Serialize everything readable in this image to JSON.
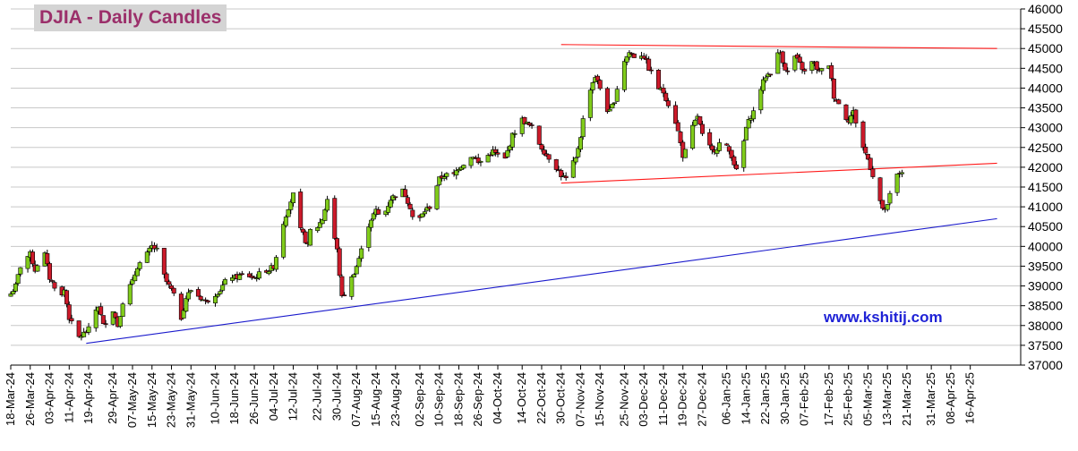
{
  "chart_data": {
    "type": "candlestick",
    "title": "DJIA - Daily Candles",
    "watermark_url": "www.kshitij.com",
    "ylim": [
      37000,
      46000
    ],
    "y_ticks": [
      37000,
      37500,
      38000,
      38500,
      39000,
      39500,
      40000,
      40500,
      41000,
      41500,
      42000,
      42500,
      43000,
      43500,
      44000,
      44500,
      45000,
      45500,
      46000
    ],
    "x_range_days": [
      0,
      405
    ],
    "x_ticks": [
      {
        "label": "18-Mar-24",
        "d": 0
      },
      {
        "label": "26-Mar-24",
        "d": 8
      },
      {
        "label": "03-Apr-24",
        "d": 16
      },
      {
        "label": "11-Apr-24",
        "d": 24
      },
      {
        "label": "19-Apr-24",
        "d": 32
      },
      {
        "label": "29-Apr-24",
        "d": 42
      },
      {
        "label": "07-May-24",
        "d": 50
      },
      {
        "label": "15-May-24",
        "d": 58
      },
      {
        "label": "23-May-24",
        "d": 66
      },
      {
        "label": "31-May-24",
        "d": 74
      },
      {
        "label": "10-Jun-24",
        "d": 84
      },
      {
        "label": "18-Jun-24",
        "d": 92
      },
      {
        "label": "26-Jun-24",
        "d": 100
      },
      {
        "label": "04-Jul-24",
        "d": 108
      },
      {
        "label": "12-Jul-24",
        "d": 116
      },
      {
        "label": "22-Jul-24",
        "d": 126
      },
      {
        "label": "30-Jul-24",
        "d": 134
      },
      {
        "label": "07-Aug-24",
        "d": 142
      },
      {
        "label": "15-Aug-24",
        "d": 150
      },
      {
        "label": "23-Aug-24",
        "d": 158
      },
      {
        "label": "02-Sep-24",
        "d": 168
      },
      {
        "label": "10-Sep-24",
        "d": 176
      },
      {
        "label": "18-Sep-24",
        "d": 184
      },
      {
        "label": "26-Sep-24",
        "d": 192
      },
      {
        "label": "04-Oct-24",
        "d": 200
      },
      {
        "label": "14-Oct-24",
        "d": 210
      },
      {
        "label": "22-Oct-24",
        "d": 218
      },
      {
        "label": "30-Oct-24",
        "d": 226
      },
      {
        "label": "07-Nov-24",
        "d": 234
      },
      {
        "label": "15-Nov-24",
        "d": 242
      },
      {
        "label": "25-Nov-24",
        "d": 252
      },
      {
        "label": "03-Dec-24",
        "d": 260
      },
      {
        "label": "11-Dec-24",
        "d": 268
      },
      {
        "label": "19-Dec-24",
        "d": 276
      },
      {
        "label": "27-Dec-24",
        "d": 284
      },
      {
        "label": "06-Jan-25",
        "d": 294
      },
      {
        "label": "14-Jan-25",
        "d": 302
      },
      {
        "label": "22-Jan-25",
        "d": 310
      },
      {
        "label": "30-Jan-25",
        "d": 318
      },
      {
        "label": "07-Feb-25",
        "d": 326
      },
      {
        "label": "17-Feb-25",
        "d": 336
      },
      {
        "label": "25-Feb-25",
        "d": 344
      },
      {
        "label": "05-Mar-25",
        "d": 352
      },
      {
        "label": "13-Mar-25",
        "d": 360
      },
      {
        "label": "21-Mar-25",
        "d": 368
      },
      {
        "label": "31-Mar-25",
        "d": 378
      },
      {
        "label": "08-Apr-25",
        "d": 386
      },
      {
        "label": "16-Apr-25",
        "d": 394
      }
    ],
    "anchors": [
      [
        0,
        38800
      ],
      [
        2,
        39000
      ],
      [
        4,
        39500
      ],
      [
        6,
        39700
      ],
      [
        8,
        39800
      ],
      [
        10,
        39400
      ],
      [
        12,
        39700
      ],
      [
        14,
        39800
      ],
      [
        16,
        39200
      ],
      [
        18,
        39000
      ],
      [
        20,
        38600
      ],
      [
        22,
        38900
      ],
      [
        24,
        38200
      ],
      [
        26,
        37900
      ],
      [
        28,
        37700
      ],
      [
        30,
        37800
      ],
      [
        32,
        37900
      ],
      [
        34,
        38300
      ],
      [
        36,
        38500
      ],
      [
        38,
        38000
      ],
      [
        40,
        38200
      ],
      [
        42,
        38400
      ],
      [
        44,
        38000
      ],
      [
        46,
        38600
      ],
      [
        48,
        38900
      ],
      [
        50,
        39100
      ],
      [
        52,
        39500
      ],
      [
        56,
        39800
      ],
      [
        58,
        40000
      ],
      [
        60,
        39900
      ],
      [
        62,
        39400
      ],
      [
        64,
        39100
      ],
      [
        66,
        38900
      ],
      [
        68,
        38600
      ],
      [
        70,
        38200
      ],
      [
        72,
        38700
      ],
      [
        74,
        38900
      ],
      [
        76,
        38800
      ],
      [
        78,
        38700
      ],
      [
        80,
        38600
      ],
      [
        84,
        38800
      ],
      [
        86,
        38900
      ],
      [
        88,
        39100
      ],
      [
        90,
        39300
      ],
      [
        92,
        39200
      ],
      [
        96,
        39300
      ],
      [
        100,
        39200
      ],
      [
        104,
        39400
      ],
      [
        106,
        39400
      ],
      [
        108,
        39500
      ],
      [
        110,
        40000
      ],
      [
        112,
        40600
      ],
      [
        114,
        41000
      ],
      [
        116,
        41300
      ],
      [
        118,
        40500
      ],
      [
        120,
        40300
      ],
      [
        122,
        40000
      ],
      [
        124,
        40800
      ],
      [
        126,
        40500
      ],
      [
        128,
        40700
      ],
      [
        130,
        41200
      ],
      [
        132,
        40500
      ],
      [
        134,
        39900
      ],
      [
        136,
        38700
      ],
      [
        138,
        38900
      ],
      [
        140,
        39200
      ],
      [
        142,
        39500
      ],
      [
        144,
        39900
      ],
      [
        146,
        40400
      ],
      [
        148,
        40700
      ],
      [
        150,
        40900
      ],
      [
        152,
        40700
      ],
      [
        154,
        40900
      ],
      [
        156,
        41200
      ],
      [
        158,
        41300
      ],
      [
        160,
        41500
      ],
      [
        162,
        41300
      ],
      [
        164,
        41000
      ],
      [
        166,
        40500
      ],
      [
        168,
        40700
      ],
      [
        170,
        40900
      ],
      [
        172,
        41000
      ],
      [
        174,
        41400
      ],
      [
        176,
        41700
      ],
      [
        178,
        41800
      ],
      [
        180,
        41800
      ],
      [
        182,
        41800
      ],
      [
        184,
        42000
      ],
      [
        186,
        42100
      ],
      [
        188,
        42200
      ],
      [
        190,
        42300
      ],
      [
        192,
        42100
      ],
      [
        194,
        42200
      ],
      [
        196,
        42300
      ],
      [
        198,
        42400
      ],
      [
        200,
        42300
      ],
      [
        202,
        42000
      ],
      [
        204,
        42400
      ],
      [
        206,
        42800
      ],
      [
        208,
        43000
      ],
      [
        210,
        43200
      ],
      [
        212,
        43100
      ],
      [
        214,
        43000
      ],
      [
        216,
        42700
      ],
      [
        218,
        42500
      ],
      [
        220,
        42300
      ],
      [
        222,
        42200
      ],
      [
        224,
        42000
      ],
      [
        226,
        41800
      ],
      [
        228,
        41700
      ],
      [
        230,
        42000
      ],
      [
        232,
        42200
      ],
      [
        234,
        42800
      ],
      [
        236,
        43600
      ],
      [
        238,
        44000
      ],
      [
        240,
        44300
      ],
      [
        242,
        44000
      ],
      [
        244,
        43500
      ],
      [
        246,
        43400
      ],
      [
        248,
        43700
      ],
      [
        250,
        44300
      ],
      [
        252,
        44700
      ],
      [
        254,
        44900
      ],
      [
        256,
        44800
      ],
      [
        258,
        44900
      ],
      [
        260,
        44800
      ],
      [
        262,
        44500
      ],
      [
        264,
        44300
      ],
      [
        266,
        44000
      ],
      [
        268,
        43900
      ],
      [
        270,
        43600
      ],
      [
        272,
        43400
      ],
      [
        274,
        42900
      ],
      [
        276,
        42300
      ],
      [
        278,
        42500
      ],
      [
        280,
        43000
      ],
      [
        282,
        43300
      ],
      [
        284,
        42800
      ],
      [
        286,
        42600
      ],
      [
        288,
        42400
      ],
      [
        290,
        42500
      ],
      [
        292,
        42700
      ],
      [
        294,
        42500
      ],
      [
        296,
        42300
      ],
      [
        298,
        41900
      ],
      [
        300,
        42300
      ],
      [
        302,
        43000
      ],
      [
        304,
        43300
      ],
      [
        306,
        43500
      ],
      [
        308,
        44000
      ],
      [
        310,
        44300
      ],
      [
        312,
        44400
      ],
      [
        314,
        44800
      ],
      [
        316,
        44900
      ],
      [
        318,
        44500
      ],
      [
        320,
        44300
      ],
      [
        322,
        44800
      ],
      [
        324,
        44600
      ],
      [
        326,
        44400
      ],
      [
        328,
        44700
      ],
      [
        330,
        44600
      ],
      [
        332,
        44400
      ],
      [
        334,
        44500
      ],
      [
        336,
        44600
      ],
      [
        338,
        43800
      ],
      [
        340,
        43600
      ],
      [
        342,
        43300
      ],
      [
        344,
        43200
      ],
      [
        346,
        43400
      ],
      [
        348,
        42900
      ],
      [
        350,
        42500
      ],
      [
        352,
        42200
      ],
      [
        354,
        41800
      ],
      [
        356,
        41400
      ],
      [
        358,
        40900
      ],
      [
        360,
        41000
      ],
      [
        362,
        41600
      ],
      [
        364,
        41800
      ],
      [
        366,
        41900
      ]
    ],
    "trendlines": [
      {
        "name": "upper resistance",
        "color": "#ff1a1a",
        "points": [
          [
            226,
            45100
          ],
          [
            405,
            45000
          ]
        ]
      },
      {
        "name": "support",
        "color": "#ff1a1a",
        "points": [
          [
            226,
            41600
          ],
          [
            405,
            42100
          ]
        ]
      },
      {
        "name": "long-term trendline",
        "color": "#1a1acc",
        "points": [
          [
            31,
            37550
          ],
          [
            405,
            40700
          ]
        ]
      }
    ],
    "up_color": "#80cc1a",
    "down_color": "#cc1a2a",
    "wick_color": "#000000",
    "grid": true
  }
}
